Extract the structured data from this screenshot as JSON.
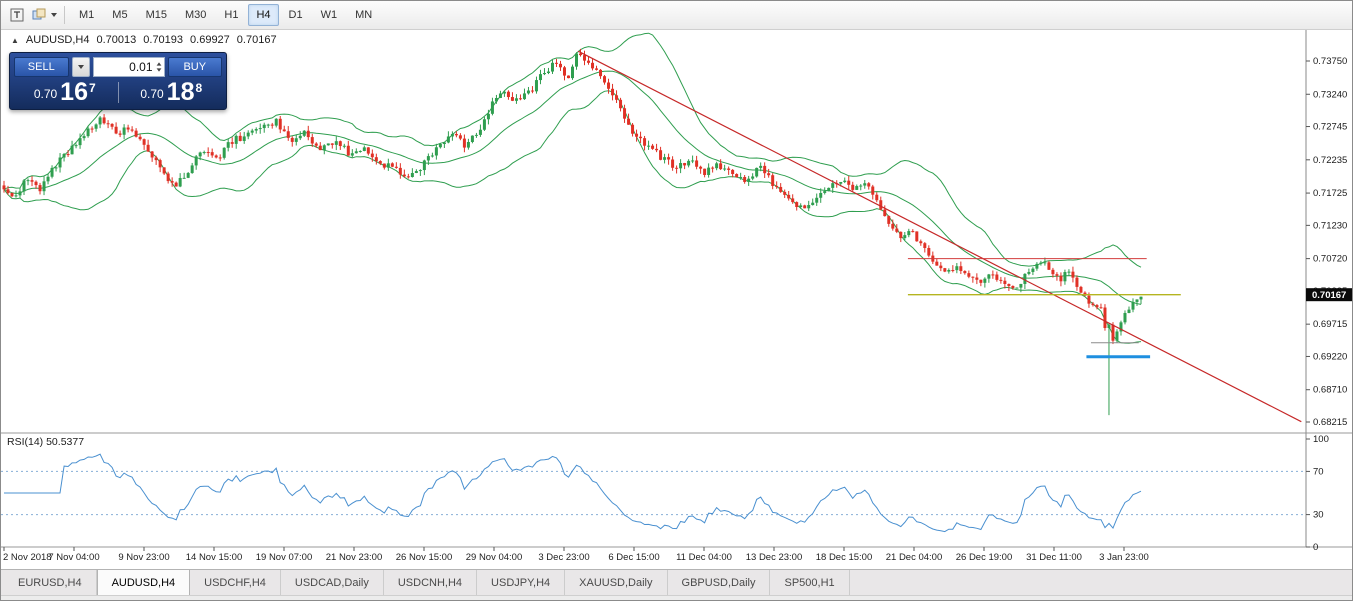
{
  "toolbar": {
    "icons": [
      "text-tool-icon",
      "objects-palette-icon"
    ],
    "timeframes": [
      "M1",
      "M5",
      "M15",
      "M30",
      "H1",
      "H4",
      "D1",
      "W1",
      "MN"
    ],
    "active_timeframe": "H4"
  },
  "symbol_line": {
    "symbol": "AUDUSD,H4",
    "open": "0.70013",
    "high": "0.70193",
    "low": "0.69927",
    "close": "0.70167"
  },
  "trade_panel": {
    "sell_label": "SELL",
    "buy_label": "BUY",
    "volume": "0.01",
    "sell_price_main": "0.70",
    "sell_price_big": "16",
    "sell_price_sup": "7",
    "buy_price_main": "0.70",
    "buy_price_big": "18",
    "buy_price_sup": "8"
  },
  "bottom_tabs": {
    "tabs": [
      "EURUSD,H4",
      "AUDUSD,H4",
      "USDCHF,H4",
      "USDCAD,Daily",
      "USDCNH,H4",
      "USDJPY,H4",
      "XAUUSD,Daily",
      "GBPUSD,Daily",
      "SP500,H1"
    ],
    "active": "AUDUSD,H4"
  },
  "chart_data": {
    "type": "candlestick",
    "title": "AUDUSD,H4",
    "price_axis": {
      "ticks": [
        "0.73750",
        "0.73240",
        "0.72745",
        "0.72235",
        "0.71725",
        "0.71230",
        "0.70720",
        "0.70225",
        "0.69715",
        "0.69220",
        "0.68710",
        "0.68215"
      ],
      "current_price": "0.70167"
    },
    "time_axis": {
      "labels": [
        "2 Nov 2018",
        "7 Nov 04:00",
        "9 Nov 23:00",
        "14 Nov 15:00",
        "19 Nov 07:00",
        "21 Nov 23:00",
        "26 Nov 15:00",
        "29 Nov 04:00",
        "3 Dec 23:00",
        "6 Dec 15:00",
        "11 Dec 04:00",
        "13 Dec 23:00",
        "18 Dec 15:00",
        "21 Dec 04:00",
        "26 Dec 19:00",
        "31 Dec 11:00",
        "3 Jan 23:00"
      ]
    },
    "n_candles": 285,
    "price_path_anchors": [
      [
        0.0,
        0.7183
      ],
      [
        0.008,
        0.7162
      ],
      [
        0.02,
        0.7196
      ],
      [
        0.032,
        0.7178
      ],
      [
        0.045,
        0.7215
      ],
      [
        0.058,
        0.7238
      ],
      [
        0.072,
        0.7262
      ],
      [
        0.085,
        0.729
      ],
      [
        0.098,
        0.7265
      ],
      [
        0.112,
        0.7272
      ],
      [
        0.125,
        0.7244
      ],
      [
        0.138,
        0.7212
      ],
      [
        0.15,
        0.718
      ],
      [
        0.162,
        0.7208
      ],
      [
        0.175,
        0.7242
      ],
      [
        0.188,
        0.7226
      ],
      [
        0.2,
        0.7252
      ],
      [
        0.215,
        0.7262
      ],
      [
        0.228,
        0.7278
      ],
      [
        0.24,
        0.7282
      ],
      [
        0.252,
        0.7252
      ],
      [
        0.265,
        0.7264
      ],
      [
        0.278,
        0.7238
      ],
      [
        0.292,
        0.725
      ],
      [
        0.305,
        0.7232
      ],
      [
        0.318,
        0.7242
      ],
      [
        0.332,
        0.7218
      ],
      [
        0.345,
        0.721
      ],
      [
        0.358,
        0.7196
      ],
      [
        0.372,
        0.7222
      ],
      [
        0.385,
        0.725
      ],
      [
        0.395,
        0.7266
      ],
      [
        0.405,
        0.7246
      ],
      [
        0.418,
        0.727
      ],
      [
        0.43,
        0.731
      ],
      [
        0.44,
        0.733
      ],
      [
        0.45,
        0.7315
      ],
      [
        0.462,
        0.7325
      ],
      [
        0.475,
        0.7358
      ],
      [
        0.486,
        0.7372
      ],
      [
        0.496,
        0.7352
      ],
      [
        0.505,
        0.739
      ],
      [
        0.515,
        0.7372
      ],
      [
        0.525,
        0.7348
      ],
      [
        0.535,
        0.7325
      ],
      [
        0.545,
        0.7288
      ],
      [
        0.555,
        0.7258
      ],
      [
        0.567,
        0.7242
      ],
      [
        0.58,
        0.7225
      ],
      [
        0.592,
        0.721
      ],
      [
        0.604,
        0.7226
      ],
      [
        0.616,
        0.7202
      ],
      [
        0.628,
        0.7216
      ],
      [
        0.64,
        0.7203
      ],
      [
        0.652,
        0.719
      ],
      [
        0.664,
        0.7212
      ],
      [
        0.676,
        0.7188
      ],
      [
        0.688,
        0.717
      ],
      [
        0.7,
        0.715
      ],
      [
        0.712,
        0.7163
      ],
      [
        0.724,
        0.718
      ],
      [
        0.736,
        0.7192
      ],
      [
        0.748,
        0.7176
      ],
      [
        0.758,
        0.7186
      ],
      [
        0.768,
        0.7155
      ],
      [
        0.778,
        0.7128
      ],
      [
        0.788,
        0.7107
      ],
      [
        0.798,
        0.7118
      ],
      [
        0.808,
        0.7088
      ],
      [
        0.818,
        0.7062
      ],
      [
        0.828,
        0.7048
      ],
      [
        0.838,
        0.7062
      ],
      [
        0.848,
        0.7048
      ],
      [
        0.858,
        0.7036
      ],
      [
        0.868,
        0.7052
      ],
      [
        0.878,
        0.7032
      ],
      [
        0.888,
        0.7024
      ],
      [
        0.896,
        0.7042
      ],
      [
        0.904,
        0.7058
      ],
      [
        0.912,
        0.7068
      ],
      [
        0.92,
        0.7052
      ],
      [
        0.928,
        0.704
      ],
      [
        0.936,
        0.7052
      ],
      [
        0.944,
        0.7028
      ],
      [
        0.952,
        0.7012
      ],
      [
        0.96,
        0.6998
      ],
      [
        0.966,
        0.6992
      ],
      [
        0.972,
        0.6928
      ],
      [
        0.976,
        0.695
      ],
      [
        0.982,
        0.6975
      ],
      [
        0.988,
        0.6992
      ],
      [
        0.994,
        0.7006
      ],
      [
        1.0,
        0.7017
      ]
    ],
    "crash_event": {
      "t": 0.972,
      "low": 0.6832
    },
    "indicators": {
      "bollinger": {
        "period": 20,
        "deviation": 2,
        "color": "#2f9e4f"
      },
      "rsi": {
        "period": 14,
        "label": "RSI(14) 50.5377",
        "current": 50.5377,
        "levels": [
          100,
          70,
          30,
          0
        ],
        "level_lines": [
          70,
          30
        ],
        "color": "#4a90d0",
        "level_color": "#88aed6"
      }
    },
    "overlays": {
      "trendline": {
        "t1": 0.505,
        "p1": 0.739,
        "t2": 1.141,
        "p2": 0.6822,
        "color": "#c62828",
        "width": 1.2
      },
      "hlines": [
        {
          "price": 0.7072,
          "t1": 0.795,
          "t2": 1.005,
          "color": "#d23b3b",
          "width": 1
        },
        {
          "price": 0.70167,
          "t1": 0.795,
          "t2": 1.035,
          "color": "#b5b520",
          "width": 1.4
        },
        {
          "price": 0.69215,
          "t1": 0.952,
          "t2": 1.008,
          "color": "#1e8fe0",
          "width": 3
        },
        {
          "price": 0.6943,
          "t1": 0.956,
          "t2": 0.998,
          "color": "#8b8b8b",
          "width": 1
        }
      ]
    },
    "colors": {
      "up": "#2f9e4f",
      "down": "#e03126",
      "background": "#ffffff",
      "axis_text": "#1a1a1a",
      "tag_bg": "#0a0a0a",
      "tag_text": "#ffffff"
    }
  }
}
